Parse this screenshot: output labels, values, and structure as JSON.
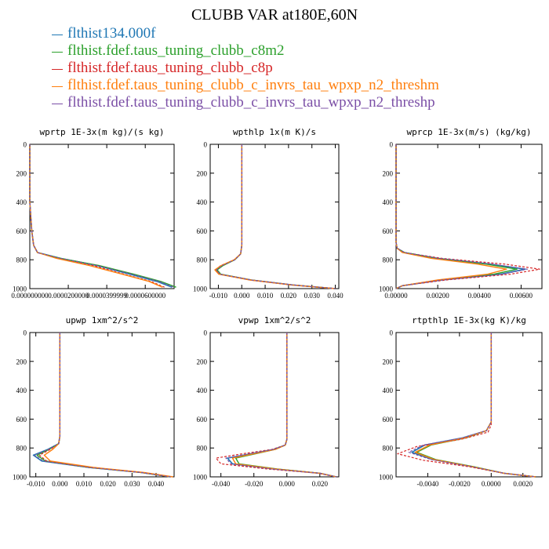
{
  "title": "CLUBB VAR at180E,60N",
  "legend": [
    {
      "label": "flthist134.000f",
      "color": "#1f77b4",
      "dash": "solid"
    },
    {
      "label": "flthist.fdef.taus_tuning_clubb_c8m2",
      "color": "#2ca02c",
      "dash": "solid"
    },
    {
      "label": "flthist.fdef.taus_tuning_clubb_c8p",
      "color": "#d62728",
      "dash": "solid"
    },
    {
      "label": "flthist.fdef.taus_tuning_clubb_c_invrs_tau_wpxp_n2_threshm",
      "color": "#ff7f0e",
      "dash": "solid"
    },
    {
      "label": "flthist.fdef.taus_tuning_clubb_c_invrs_tau_wpxp_n2_threshp",
      "color": "#7b4fa6",
      "dash": "solid"
    }
  ],
  "chart_data": [
    {
      "type": "line",
      "title": "wprtp  1E-3x(m kg)/(s kg)",
      "xlim": [
        0,
        7.5e-05
      ],
      "ylim": [
        1000,
        0
      ],
      "xticks": [
        0,
        2e-05,
        4e-05,
        6e-05
      ],
      "xtick_labels": [
        "0.000000000",
        "0.0000200000",
        "0.0000399999",
        "0.0000600000"
      ],
      "yticks": [
        0,
        200,
        400,
        600,
        800,
        1000
      ],
      "ytick_labels": [
        "0",
        "200",
        "400",
        "600",
        "800",
        "1000"
      ],
      "series": [
        {
          "line": 0,
          "x": [
            0,
            0,
            1e-06,
            2e-06,
            4e-06,
            1.6e-05,
            3.5e-05,
            5.2e-05,
            6.6e-05,
            7.4e-05
          ],
          "y": [
            0,
            400,
            600,
            700,
            750,
            790,
            840,
            900,
            950,
            990
          ]
        },
        {
          "line": 1,
          "x": [
            0,
            0,
            1e-06,
            2e-06,
            4e-06,
            1.6e-05,
            3.6e-05,
            5.4e-05,
            6.8e-05,
            7.6e-05
          ],
          "y": [
            0,
            400,
            600,
            700,
            750,
            790,
            840,
            900,
            950,
            990
          ]
        },
        {
          "line": 2,
          "x": [
            0,
            0,
            1e-06,
            2e-06,
            4e-06,
            1.5e-05,
            3.3e-05,
            4.9e-05,
            6.3e-05,
            7e-05
          ],
          "y": [
            0,
            400,
            600,
            700,
            750,
            790,
            840,
            900,
            950,
            990
          ]
        },
        {
          "line": 3,
          "x": [
            0,
            0,
            1e-06,
            2e-06,
            4e-06,
            1.4e-05,
            3.1e-05,
            4.8e-05,
            6.2e-05,
            6.9e-05
          ],
          "y": [
            0,
            400,
            600,
            700,
            750,
            790,
            840,
            900,
            950,
            990
          ]
        },
        {
          "line": 4,
          "x": [
            0,
            0,
            1e-06,
            2e-06,
            4e-06,
            1.6e-05,
            3.5e-05,
            5.3e-05,
            6.7e-05,
            7.5e-05
          ],
          "y": [
            0,
            400,
            600,
            700,
            750,
            790,
            840,
            900,
            950,
            990
          ]
        }
      ]
    },
    {
      "type": "line",
      "title": "wpthlp  1x(m K)/s",
      "xlim": [
        -0.0135,
        0.0415
      ],
      "ylim": [
        1000,
        0
      ],
      "xticks": [
        -0.01,
        0,
        0.01,
        0.02,
        0.03,
        0.04
      ],
      "xtick_labels": [
        "-0.010",
        "0.000",
        "0.010",
        "0.020",
        "0.030",
        "0.040"
      ],
      "yticks": [
        0,
        200,
        400,
        600,
        800,
        1000
      ],
      "ytick_labels": [
        "0",
        "200",
        "400",
        "600",
        "800",
        "1000"
      ],
      "series": [
        {
          "line": 0,
          "x": [
            0,
            0,
            -0.0005,
            -0.003,
            -0.0085,
            -0.011,
            -0.0095,
            0.004,
            0.022,
            0.04
          ],
          "y": [
            0,
            700,
            760,
            800,
            840,
            870,
            900,
            940,
            975,
            1000
          ]
        },
        {
          "line": 1,
          "x": [
            0,
            0,
            -0.0005,
            -0.003,
            -0.008,
            -0.0105,
            -0.009,
            0.004,
            0.022,
            0.04
          ],
          "y": [
            0,
            700,
            760,
            800,
            840,
            870,
            900,
            940,
            975,
            1000
          ]
        },
        {
          "line": 2,
          "x": [
            0,
            0,
            -0.0005,
            -0.003,
            -0.009,
            -0.0112,
            -0.0095,
            0.004,
            0.022,
            0.04
          ],
          "y": [
            0,
            700,
            760,
            800,
            840,
            870,
            900,
            940,
            975,
            1000
          ]
        },
        {
          "line": 3,
          "x": [
            0,
            0,
            -0.0005,
            -0.0032,
            -0.0088,
            -0.0115,
            -0.0098,
            0.0035,
            0.0215,
            0.04
          ],
          "y": [
            0,
            700,
            760,
            800,
            840,
            870,
            900,
            940,
            975,
            1000
          ]
        },
        {
          "line": 4,
          "x": [
            0,
            0,
            -0.0005,
            -0.003,
            -0.0083,
            -0.0108,
            -0.0093,
            0.004,
            0.022,
            0.04
          ],
          "y": [
            0,
            700,
            760,
            800,
            840,
            870,
            900,
            940,
            975,
            1000
          ]
        }
      ]
    },
    {
      "type": "line",
      "title": "wprcp  1E-3x(m/s) (kg/kg)",
      "xlim": [
        0,
        0.007
      ],
      "ylim": [
        1000,
        0
      ],
      "xticks": [
        0,
        0.002,
        0.004,
        0.006
      ],
      "xtick_labels": [
        "0.00000",
        "0.00200",
        "0.00400",
        "0.00600"
      ],
      "yticks": [
        0,
        200,
        400,
        600,
        800,
        1000
      ],
      "ytick_labels": [
        "0",
        "200",
        "400",
        "600",
        "800",
        "1000"
      ],
      "series": [
        {
          "line": 0,
          "x": [
            0,
            0,
            5e-05,
            0.0004,
            0.002,
            0.0045,
            0.0062,
            0.005,
            0.0022,
            0.0003,
            0
          ],
          "y": [
            0,
            680,
            720,
            750,
            790,
            830,
            865,
            900,
            940,
            980,
            1000
          ]
        },
        {
          "line": 1,
          "x": [
            0,
            0,
            5e-05,
            0.0004,
            0.0019,
            0.0043,
            0.0058,
            0.0047,
            0.0021,
            0.0003,
            0
          ],
          "y": [
            0,
            680,
            720,
            750,
            790,
            830,
            865,
            900,
            940,
            980,
            1000
          ]
        },
        {
          "line": 2,
          "x": [
            0,
            0,
            5e-05,
            0.0004,
            0.0022,
            0.0052,
            0.0069,
            0.0055,
            0.0024,
            0.0003,
            0
          ],
          "y": [
            0,
            680,
            720,
            750,
            790,
            830,
            865,
            900,
            940,
            980,
            1000
          ]
        },
        {
          "line": 3,
          "x": [
            0,
            0,
            5e-05,
            0.0003,
            0.0017,
            0.0039,
            0.0053,
            0.0044,
            0.002,
            0.0003,
            0
          ],
          "y": [
            0,
            680,
            720,
            750,
            790,
            830,
            865,
            900,
            940,
            980,
            1000
          ]
        },
        {
          "line": 4,
          "x": [
            0,
            0,
            5e-05,
            0.0004,
            0.002,
            0.0046,
            0.0063,
            0.0051,
            0.0022,
            0.0003,
            0
          ],
          "y": [
            0,
            680,
            720,
            750,
            790,
            830,
            865,
            900,
            940,
            980,
            1000
          ]
        }
      ]
    },
    {
      "type": "line",
      "title": "upwp  1xm^2/s^2",
      "xlim": [
        -0.0125,
        0.0475
      ],
      "ylim": [
        1000,
        0
      ],
      "xticks": [
        -0.01,
        0,
        0.01,
        0.02,
        0.03,
        0.04
      ],
      "xtick_labels": [
        "-0.010",
        "0.000",
        "0.010",
        "0.020",
        "0.030",
        "0.040"
      ],
      "yticks": [
        0,
        200,
        400,
        600,
        800,
        1000
      ],
      "ytick_labels": [
        "0",
        "200",
        "400",
        "600",
        "800",
        "1000"
      ],
      "series": [
        {
          "line": 0,
          "x": [
            0,
            0,
            -0.0005,
            -0.005,
            -0.011,
            -0.0075,
            0.012,
            0.034,
            0.046
          ],
          "y": [
            0,
            720,
            770,
            810,
            850,
            890,
            935,
            970,
            1000
          ]
        },
        {
          "line": 1,
          "x": [
            0,
            0,
            -0.0005,
            -0.0045,
            -0.0095,
            -0.006,
            0.012,
            0.034,
            0.046
          ],
          "y": [
            0,
            720,
            770,
            810,
            850,
            890,
            935,
            970,
            1000
          ]
        },
        {
          "line": 2,
          "x": [
            0,
            0,
            -0.0005,
            -0.004,
            -0.0085,
            -0.0055,
            0.0125,
            0.034,
            0.046
          ],
          "y": [
            0,
            720,
            770,
            810,
            850,
            890,
            935,
            970,
            1000
          ]
        },
        {
          "line": 3,
          "x": [
            0,
            0,
            -0.0005,
            -0.003,
            -0.0065,
            -0.004,
            0.014,
            0.035,
            0.047
          ],
          "y": [
            0,
            720,
            770,
            810,
            850,
            890,
            935,
            970,
            1000
          ]
        },
        {
          "line": 4,
          "x": [
            0,
            0,
            -0.0005,
            -0.0048,
            -0.0105,
            -0.007,
            0.012,
            0.034,
            0.046
          ],
          "y": [
            0,
            720,
            770,
            810,
            850,
            890,
            935,
            970,
            1000
          ]
        }
      ]
    },
    {
      "type": "line",
      "title": "vpwp  1xm^2/s^2",
      "xlim": [
        -0.0465,
        0.0315
      ],
      "ylim": [
        1000,
        0
      ],
      "xticks": [
        -0.04,
        -0.02,
        0,
        0.02
      ],
      "xtick_labels": [
        "-0.040",
        "-0.020",
        "0.000",
        "0.020"
      ],
      "yticks": [
        0,
        200,
        400,
        600,
        800,
        1000
      ],
      "ytick_labels": [
        "0",
        "200",
        "400",
        "600",
        "800",
        "1000"
      ],
      "series": [
        {
          "line": 0,
          "x": [
            0,
            0,
            -0.001,
            -0.008,
            -0.022,
            -0.036,
            -0.033,
            -0.008,
            0.02,
            0.03
          ],
          "y": [
            0,
            740,
            780,
            810,
            840,
            870,
            910,
            945,
            975,
            1000
          ]
        },
        {
          "line": 1,
          "x": [
            0,
            0,
            -0.001,
            -0.007,
            -0.019,
            -0.031,
            -0.029,
            -0.006,
            0.02,
            0.03
          ],
          "y": [
            0,
            740,
            780,
            810,
            840,
            870,
            910,
            945,
            975,
            1000
          ]
        },
        {
          "line": 2,
          "x": [
            0,
            0,
            -0.001,
            -0.009,
            -0.027,
            -0.043,
            -0.04,
            -0.012,
            0.019,
            0.03
          ],
          "y": [
            0,
            740,
            780,
            810,
            840,
            870,
            910,
            945,
            975,
            1000
          ]
        },
        {
          "line": 3,
          "x": [
            0,
            0,
            -0.001,
            -0.007,
            -0.02,
            -0.033,
            -0.031,
            -0.007,
            0.02,
            0.03
          ],
          "y": [
            0,
            740,
            780,
            810,
            840,
            870,
            910,
            945,
            975,
            1000
          ]
        },
        {
          "line": 4,
          "x": [
            0,
            0,
            -0.001,
            -0.008,
            -0.023,
            -0.037,
            -0.034,
            -0.009,
            0.02,
            0.03
          ],
          "y": [
            0,
            740,
            780,
            810,
            840,
            870,
            910,
            945,
            975,
            1000
          ]
        }
      ]
    },
    {
      "type": "line",
      "title": "rtpthlp  1E-3x(kg K)/kg",
      "xlim": [
        -0.006,
        0.0032
      ],
      "ylim": [
        1000,
        0
      ],
      "xticks": [
        -0.004,
        -0.002,
        0,
        0.002
      ],
      "xtick_labels": [
        "-0.0040",
        "-0.0020",
        "0.0000",
        "0.0020"
      ],
      "yticks": [
        0,
        200,
        400,
        600,
        800,
        1000
      ],
      "ytick_labels": [
        "0",
        "200",
        "400",
        "600",
        "800",
        "1000"
      ],
      "series": [
        {
          "line": 0,
          "x": [
            0,
            0,
            -0.0003,
            -0.0018,
            -0.0042,
            -0.005,
            -0.0037,
            -0.0012,
            0.0008,
            0.0028
          ],
          "y": [
            0,
            620,
            680,
            730,
            780,
            830,
            880,
            930,
            975,
            1000
          ]
        },
        {
          "line": 1,
          "x": [
            0,
            0,
            -0.0003,
            -0.0016,
            -0.0038,
            -0.0047,
            -0.0035,
            -0.0011,
            0.0008,
            0.0028
          ],
          "y": [
            0,
            620,
            680,
            730,
            780,
            830,
            880,
            930,
            975,
            1000
          ]
        },
        {
          "line": 2,
          "x": [
            0,
            0,
            -0.0002,
            -0.0019,
            -0.0047,
            -0.0059,
            -0.0043,
            -0.0014,
            0.0008,
            0.0028
          ],
          "y": [
            0,
            640,
            690,
            740,
            790,
            840,
            885,
            930,
            975,
            1000
          ]
        },
        {
          "line": 3,
          "x": [
            0,
            0,
            -0.0003,
            -0.0017,
            -0.0039,
            -0.0048,
            -0.0036,
            -0.0012,
            0.0008,
            0.0028
          ],
          "y": [
            0,
            620,
            680,
            730,
            780,
            830,
            880,
            930,
            975,
            1000
          ]
        },
        {
          "line": 4,
          "x": [
            0,
            0,
            -0.0003,
            -0.0018,
            -0.0043,
            -0.0052,
            -0.0038,
            -0.0012,
            0.0008,
            0.0028
          ],
          "y": [
            0,
            620,
            680,
            730,
            780,
            830,
            880,
            930,
            975,
            1000
          ]
        }
      ]
    }
  ]
}
